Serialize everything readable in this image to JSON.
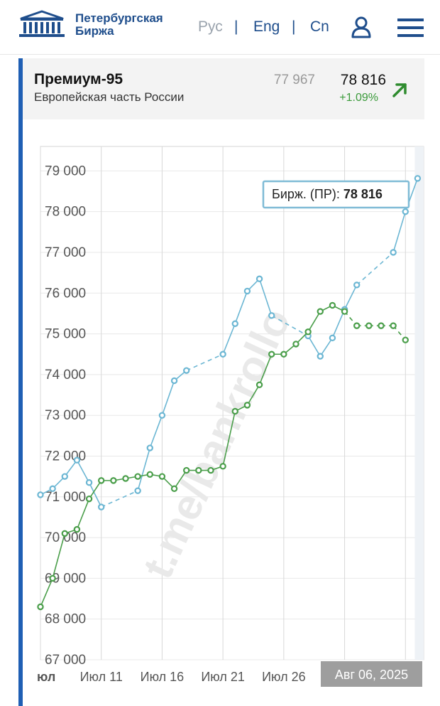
{
  "header": {
    "logo_line1": "Петербургская",
    "logo_line2": "Биржа",
    "lang_ru": "Рус",
    "lang_en": "Eng",
    "lang_cn": "Cn",
    "separator": "|",
    "icons": [
      "exchange-building-icon",
      "user-icon",
      "menu-icon"
    ]
  },
  "product": {
    "title": "Премиум-95",
    "subtitle": "Европейская часть России",
    "previous_price": "77 967",
    "last_price": "78 816",
    "change": "+1.09%",
    "trend_icon": "arrow-up-right-icon"
  },
  "colors": {
    "brand": "#1f4e8c",
    "accent": "#1f5fb4",
    "series_blue": "#6bb6d3",
    "series_green": "#4a9e4a",
    "change_up": "#3a9a3a"
  },
  "chart_data": {
    "type": "line",
    "y_ticks": [
      "67 000",
      "68 000",
      "69 000",
      "70 000",
      "71 000",
      "72 000",
      "73 000",
      "74 000",
      "75 000",
      "76 000",
      "77 000",
      "78 000",
      "79 000"
    ],
    "ylim": [
      67000,
      79600
    ],
    "x_ticks": [
      {
        "label": "юл",
        "idx": 0
      },
      {
        "label": "Июл 11",
        "idx": 5
      },
      {
        "label": "Июл 16",
        "idx": 10
      },
      {
        "label": "Июл 21",
        "idx": 15
      },
      {
        "label": "Июл 26",
        "idx": 20
      }
    ],
    "x_range": [
      0,
      31.5
    ],
    "tooltip": {
      "label": "Бирж. (ПР):",
      "value": "78 816"
    },
    "date_label": "Авг 06, 2025",
    "grid": true,
    "series": [
      {
        "color": "blue",
        "points": [
          {
            "x": 0,
            "y": 71050
          },
          {
            "x": 1,
            "y": 71200
          },
          {
            "x": 2,
            "y": 71500
          },
          {
            "x": 3,
            "y": 71900
          },
          {
            "x": 4,
            "y": 71350
          },
          {
            "x": 5,
            "y": 70750,
            "dash": false
          },
          {
            "x": 8,
            "y": 71150,
            "dash": true
          },
          {
            "x": 9,
            "y": 72200
          },
          {
            "x": 10,
            "y": 73000
          },
          {
            "x": 11,
            "y": 73850
          },
          {
            "x": 12,
            "y": 74100
          },
          {
            "x": 15,
            "y": 74500,
            "dash": true
          },
          {
            "x": 16,
            "y": 75250
          },
          {
            "x": 17,
            "y": 76050
          },
          {
            "x": 18,
            "y": 76350
          },
          {
            "x": 19,
            "y": 75450
          },
          {
            "x": 22,
            "y": 74950,
            "dash": true
          },
          {
            "x": 23,
            "y": 74450
          },
          {
            "x": 24,
            "y": 74900
          },
          {
            "x": 25,
            "y": 75600
          },
          {
            "x": 26,
            "y": 76200
          },
          {
            "x": 29,
            "y": 77000,
            "dash": true
          },
          {
            "x": 30,
            "y": 78000
          },
          {
            "x": 31,
            "y": 78816
          }
        ]
      },
      {
        "color": "green",
        "points": [
          {
            "x": 0,
            "y": 68300
          },
          {
            "x": 1,
            "y": 69000
          },
          {
            "x": 2,
            "y": 70100
          },
          {
            "x": 3,
            "y": 70200
          },
          {
            "x": 4,
            "y": 70950
          },
          {
            "x": 5,
            "y": 71400
          },
          {
            "x": 6,
            "y": 71400
          },
          {
            "x": 7,
            "y": 71450
          },
          {
            "x": 8,
            "y": 71500
          },
          {
            "x": 9,
            "y": 71550
          },
          {
            "x": 10,
            "y": 71500
          },
          {
            "x": 11,
            "y": 71200
          },
          {
            "x": 12,
            "y": 71650
          },
          {
            "x": 13,
            "y": 71650
          },
          {
            "x": 14,
            "y": 71650
          },
          {
            "x": 15,
            "y": 71750
          },
          {
            "x": 16,
            "y": 73100
          },
          {
            "x": 17,
            "y": 73250
          },
          {
            "x": 18,
            "y": 73750
          },
          {
            "x": 19,
            "y": 74500
          },
          {
            "x": 20,
            "y": 74500
          },
          {
            "x": 21,
            "y": 74750
          },
          {
            "x": 22,
            "y": 75050
          },
          {
            "x": 23,
            "y": 75550
          },
          {
            "x": 24,
            "y": 75700
          },
          {
            "x": 25,
            "y": 75550
          },
          {
            "x": 26,
            "y": 75200,
            "dash": true
          },
          {
            "x": 27,
            "y": 75200,
            "dash": true
          },
          {
            "x": 28,
            "y": 75200,
            "dash": true
          },
          {
            "x": 29,
            "y": 75200,
            "dash": true
          },
          {
            "x": 30,
            "y": 74850,
            "dash": true
          }
        ]
      }
    ]
  }
}
